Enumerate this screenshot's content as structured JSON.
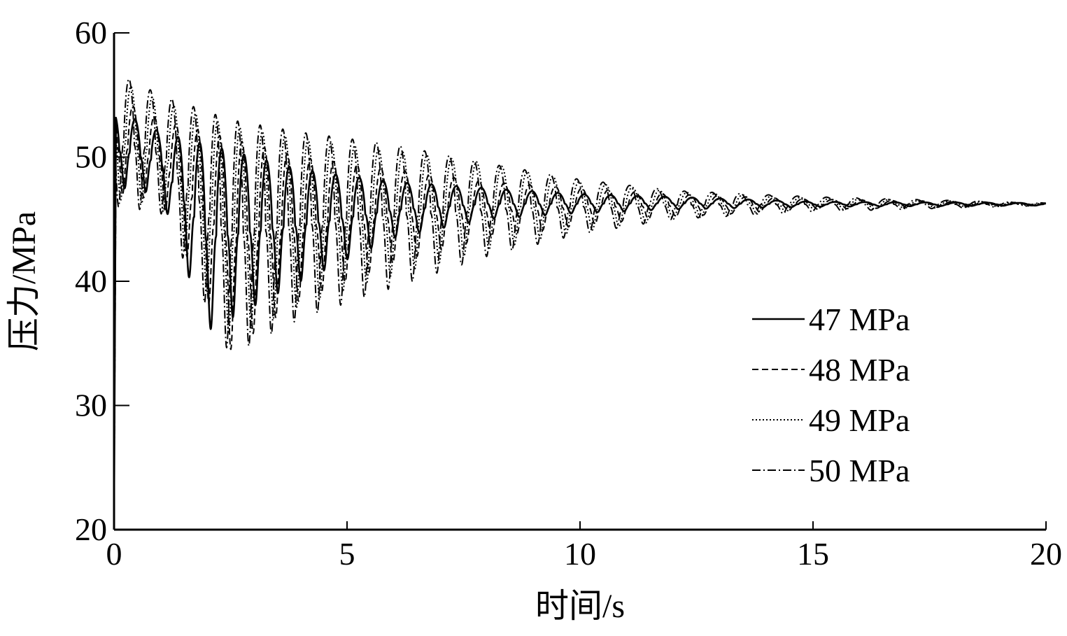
{
  "chart_data": {
    "type": "line",
    "xlabel": "时间/s",
    "ylabel": "压力/MPa",
    "xlim": [
      0,
      20
    ],
    "ylim": [
      20,
      60
    ],
    "xticks": [
      0,
      5,
      10,
      15,
      20
    ],
    "yticks": [
      20,
      30,
      40,
      50,
      60
    ],
    "grid": false,
    "legend_position": "bottom-right",
    "series": [
      {
        "name": "47 MPa",
        "style": "solid",
        "final_value": 46.2,
        "damping_time": 3.2,
        "period": 0.45,
        "peaks": [
          [
            0.2,
            53.5,
            47.5
          ],
          [
            1.0,
            52.0,
            47.0
          ],
          [
            2.0,
            51.0,
            36.0
          ],
          [
            4.0,
            49.0,
            40.0
          ],
          [
            6.0,
            48.0,
            43.5
          ],
          [
            8.0,
            47.5,
            45.0
          ],
          [
            10.0,
            47.0,
            45.5
          ],
          [
            12.0,
            46.8,
            45.8
          ],
          [
            15.0,
            46.4,
            46.0
          ],
          [
            20.0,
            46.3,
            46.1
          ]
        ]
      },
      {
        "name": "48 MPa",
        "style": "dashed",
        "final_value": 46.2,
        "damping_time": 3.4,
        "period": 0.45,
        "peaks": [
          [
            0.2,
            54.5,
            47.0
          ],
          [
            1.0,
            53.0,
            46.5
          ],
          [
            2.5,
            51.5,
            34.5
          ],
          [
            4.0,
            50.0,
            38.5
          ],
          [
            6.0,
            49.0,
            41.5
          ],
          [
            8.0,
            48.0,
            43.5
          ],
          [
            10.0,
            47.5,
            44.5
          ],
          [
            12.0,
            47.0,
            45.2
          ],
          [
            15.0,
            46.6,
            45.8
          ],
          [
            20.0,
            46.3,
            46.1
          ]
        ]
      },
      {
        "name": "49 MPa",
        "style": "dotted",
        "final_value": 46.2,
        "damping_time": 3.6,
        "period": 0.45,
        "peaks": [
          [
            0.2,
            56.0,
            46.5
          ],
          [
            1.0,
            54.5,
            46.0
          ],
          [
            2.5,
            52.5,
            35.5
          ],
          [
            4.0,
            51.5,
            38.0
          ],
          [
            6.0,
            50.5,
            40.5
          ],
          [
            8.0,
            49.5,
            42.5
          ],
          [
            10.0,
            48.0,
            44.0
          ],
          [
            12.0,
            47.2,
            45.0
          ],
          [
            15.0,
            46.7,
            45.7
          ],
          [
            20.0,
            46.3,
            46.1
          ]
        ]
      },
      {
        "name": "50 MPa",
        "style": "dashdot",
        "final_value": 46.2,
        "damping_time": 3.8,
        "period": 0.45,
        "peaks": [
          [
            0.2,
            56.5,
            46.0
          ],
          [
            1.0,
            55.0,
            45.5
          ],
          [
            2.5,
            53.0,
            34.0
          ],
          [
            4.0,
            52.0,
            37.0
          ],
          [
            6.0,
            51.0,
            39.5
          ],
          [
            8.0,
            49.5,
            42.0
          ],
          [
            10.0,
            48.2,
            43.8
          ],
          [
            12.0,
            47.3,
            45.0
          ],
          [
            15.0,
            46.8,
            45.6
          ],
          [
            20.0,
            46.3,
            46.1
          ]
        ]
      }
    ]
  }
}
